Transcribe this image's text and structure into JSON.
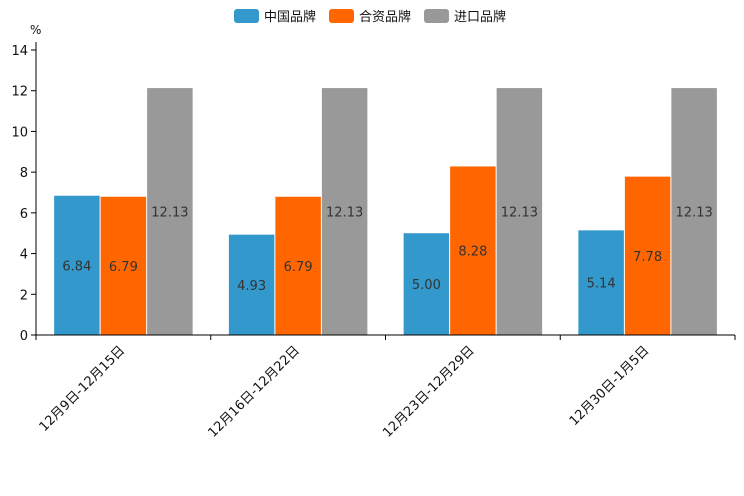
{
  "chart_data": {
    "type": "bar",
    "unit": "%",
    "categories": [
      "12月9日-12月15日",
      "12月16日-12月22日",
      "12月23日-12月29日",
      "12月30日-1月5日"
    ],
    "series": [
      {
        "name": "中国品牌",
        "color": "#3399CC",
        "values": [
          6.84,
          4.93,
          5.0,
          5.14
        ],
        "labels": [
          "6.84",
          "4.93",
          "5.00",
          "5.14"
        ]
      },
      {
        "name": "合资品牌",
        "color": "#FF6600",
        "values": [
          6.79,
          6.79,
          8.28,
          7.78
        ],
        "labels": [
          "6.79",
          "6.79",
          "8.28",
          "7.78"
        ]
      },
      {
        "name": "进口品牌",
        "color": "#999999",
        "values": [
          12.13,
          12.13,
          12.13,
          12.13
        ],
        "labels": [
          "12.13",
          "12.13",
          "12.13",
          "12.13"
        ]
      }
    ],
    "yticks": [
      "0",
      "2",
      "4",
      "6",
      "8",
      "10",
      "12",
      "14"
    ],
    "ylim": [
      0,
      14
    ],
    "legend_position": "top-center",
    "grid": false
  }
}
